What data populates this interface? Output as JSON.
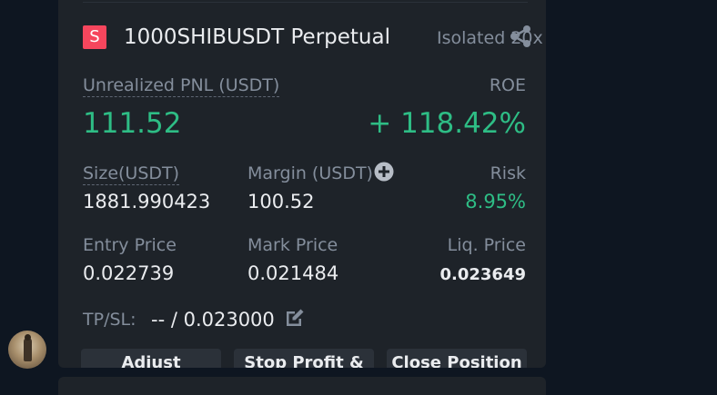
{
  "position": {
    "symbol_badge": "S",
    "symbol": "1000SHIBUSDT Perpetual",
    "margin_mode": "Isolated 20x",
    "unrealized_pnl_label": "Unrealized PNL (USDT)",
    "unrealized_pnl_value": "111.52",
    "roe_label": "ROE",
    "roe_value": "+ 118.42%",
    "size_label": "Size(USDT)",
    "size_value": "1881.990423",
    "margin_label": "Margin (USDT)",
    "margin_value": "100.52",
    "risk_label": "Risk",
    "risk_value": "8.95%",
    "entry_price_label": "Entry Price",
    "entry_price_value": "0.022739",
    "mark_price_label": "Mark Price",
    "mark_price_value": "0.021484",
    "liq_price_label": "Liq. Price",
    "liq_price_value": "0.023649",
    "tpsl_label": "TP/SL:",
    "tpsl_value": "-- / 0.023000"
  },
  "buttons": {
    "left_label": "Adjust Leverage",
    "middle_label": "Stop Profit & Loss",
    "right_label": "Close Position"
  },
  "icons": {
    "share": "share-icon",
    "add_margin": "plus-circle-icon",
    "edit_tpsl": "edit-icon"
  },
  "colors": {
    "profit": "#2ebd85",
    "badge": "#f6465d",
    "card": "#1e2329",
    "background": "#0e1621"
  }
}
